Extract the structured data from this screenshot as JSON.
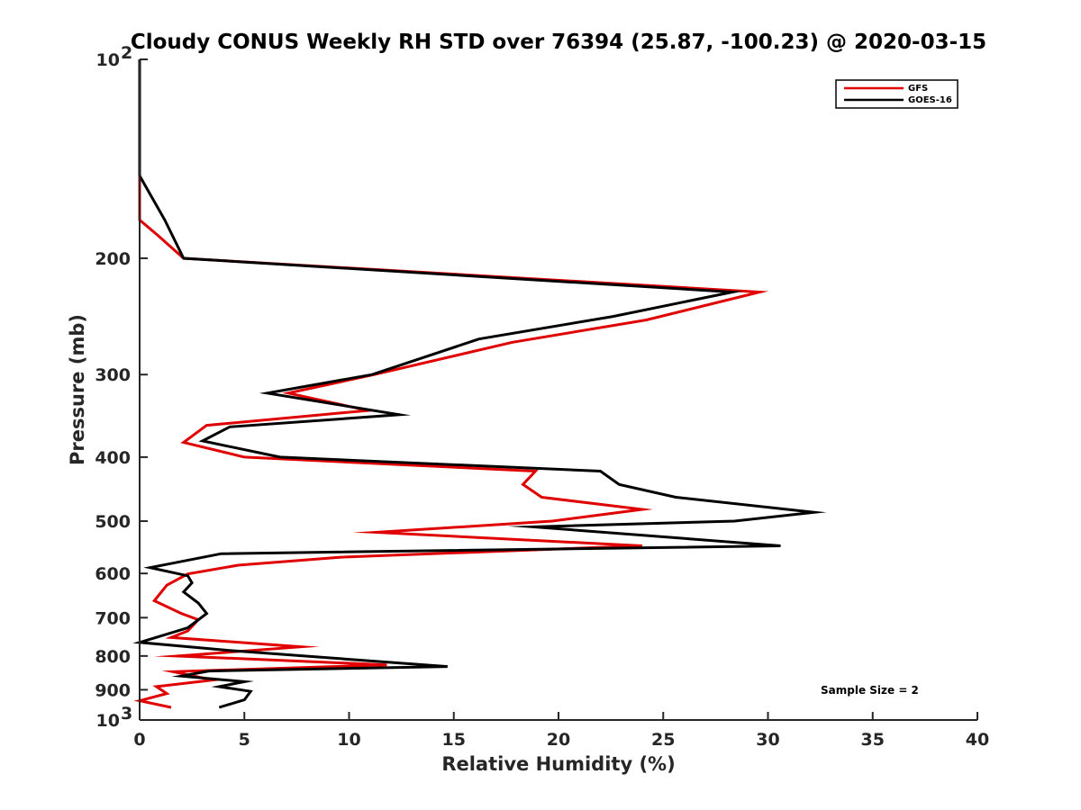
{
  "chart_data": {
    "type": "line",
    "title": "Cloudy CONUS Weekly RH STD over 76394 (25.87, -100.23) @ 2020-03-15",
    "xlabel": "Relative Humidity (%)",
    "ylabel": "Pressure (mb)",
    "xlim": [
      0,
      40
    ],
    "ylim": [
      100,
      1000
    ],
    "y_scale": "log",
    "y_reversed": true,
    "x_ticks": [
      "0",
      "5",
      "10",
      "15",
      "20",
      "25",
      "30",
      "35",
      "40"
    ],
    "y_ticks": [
      {
        "value": 100,
        "label": "10",
        "exp": "2"
      },
      {
        "value": 200,
        "label": "200"
      },
      {
        "value": 300,
        "label": "300"
      },
      {
        "value": 400,
        "label": "400"
      },
      {
        "value": 500,
        "label": "500"
      },
      {
        "value": 600,
        "label": "600"
      },
      {
        "value": 700,
        "label": "700"
      },
      {
        "value": 800,
        "label": "800"
      },
      {
        "value": 900,
        "label": "900"
      },
      {
        "value": 1000,
        "label": "10",
        "exp": "3"
      }
    ],
    "grid": false,
    "legend": "top-right",
    "annotation": "Sample Size = 2",
    "series": [
      {
        "name": "GFS",
        "color": "#e00000",
        "points": [
          [
            0,
            100
          ],
          [
            0,
            150
          ],
          [
            0,
            175
          ],
          [
            0.9,
            185
          ],
          [
            2.1,
            200
          ],
          [
            29.6,
            225
          ],
          [
            24.2,
            248
          ],
          [
            17.8,
            268
          ],
          [
            11.2,
            300
          ],
          [
            7.1,
            320
          ],
          [
            10.9,
            340
          ],
          [
            3.2,
            358
          ],
          [
            2.1,
            380
          ],
          [
            5.0,
            400
          ],
          [
            18.9,
            420
          ],
          [
            18.3,
            440
          ],
          [
            19.2,
            460
          ],
          [
            24.0,
            480
          ],
          [
            19.7,
            500
          ],
          [
            11.3,
            520
          ],
          [
            24.0,
            545
          ],
          [
            9.6,
            567
          ],
          [
            4.7,
            583
          ],
          [
            2.3,
            601
          ],
          [
            1.3,
            625
          ],
          [
            0.7,
            660
          ],
          [
            2.0,
            690
          ],
          [
            2.8,
            705
          ],
          [
            2.3,
            733
          ],
          [
            1.5,
            750
          ],
          [
            7.7,
            775
          ],
          [
            1.8,
            800
          ],
          [
            11.8,
            825
          ],
          [
            1.6,
            845
          ],
          [
            3.5,
            870
          ],
          [
            0.8,
            890
          ],
          [
            1.3,
            912
          ],
          [
            0.0,
            935
          ],
          [
            1.5,
            957
          ]
        ]
      },
      {
        "name": "GOES-16",
        "color": "#000000",
        "points": [
          [
            0,
            100
          ],
          [
            0,
            150
          ],
          [
            1.2,
            175
          ],
          [
            2.1,
            200
          ],
          [
            28.3,
            225
          ],
          [
            22.6,
            245
          ],
          [
            16.2,
            265
          ],
          [
            11.1,
            300
          ],
          [
            6.1,
            320
          ],
          [
            12.4,
            345
          ],
          [
            4.3,
            360
          ],
          [
            3.0,
            378
          ],
          [
            6.7,
            400
          ],
          [
            22.0,
            420
          ],
          [
            22.9,
            440
          ],
          [
            25.6,
            460
          ],
          [
            32.2,
            485
          ],
          [
            28.4,
            500
          ],
          [
            18.8,
            510
          ],
          [
            30.6,
            545
          ],
          [
            3.9,
            560
          ],
          [
            0.5,
            588
          ],
          [
            2.3,
            605
          ],
          [
            2.5,
            620
          ],
          [
            2.1,
            640
          ],
          [
            2.8,
            665
          ],
          [
            3.2,
            690
          ],
          [
            2.3,
            725
          ],
          [
            0.0,
            763
          ],
          [
            4.3,
            785
          ],
          [
            14.7,
            830
          ],
          [
            3.3,
            843
          ],
          [
            2.0,
            858
          ],
          [
            5.0,
            875
          ],
          [
            3.8,
            890
          ],
          [
            5.3,
            905
          ],
          [
            5.0,
            932
          ],
          [
            3.8,
            957
          ]
        ]
      }
    ]
  }
}
